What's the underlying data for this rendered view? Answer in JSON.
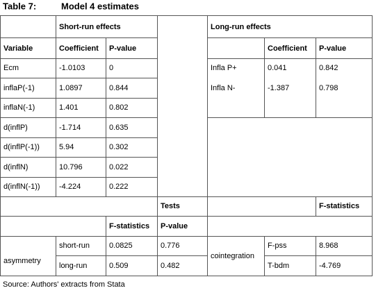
{
  "title": {
    "label": "Table 7:",
    "caption": "Model 4 estimates"
  },
  "table": {
    "short_run_header": "Short-run effects",
    "long_run_header": "Long-run effects",
    "left_columns": [
      "Variable",
      "Coefficient",
      "P-value"
    ],
    "left_rows": [
      [
        "Ecm",
        -1.0103,
        0
      ],
      [
        "inflaP(-1)",
        1.0897,
        0.844
      ],
      [
        "inflaN(-1)",
        1.401,
        0.802
      ],
      [
        "d(inflP)",
        -1.714,
        0.635
      ],
      [
        "d(inflP(-1))",
        5.94,
        0.302
      ],
      [
        "d(inflN)",
        10.796,
        0.022
      ],
      [
        "d(inflN(-1))",
        -4.224,
        0.222
      ]
    ],
    "right_columns": [
      "Coefficient",
      "P-value"
    ],
    "right_rows": [
      [
        "Infla P+",
        0.041,
        0.842
      ],
      [
        "Infla N-",
        -1.387,
        0.798
      ]
    ],
    "tests_header": "Tests",
    "fstat_header": "F-statistics",
    "test_columns": [
      "F-statistics",
      "P-value"
    ],
    "asymmetry": {
      "label": "asymmetry",
      "rows": [
        [
          "short-run",
          0.0825,
          0.776
        ],
        [
          "long-run",
          0.509,
          0.482
        ]
      ]
    },
    "cointegration": {
      "label": "cointegration",
      "rows": [
        [
          "F-pss",
          8.968
        ],
        [
          "T-bdm",
          -4.769
        ]
      ]
    }
  },
  "source": "Source: Authors' extracts from Stata"
}
